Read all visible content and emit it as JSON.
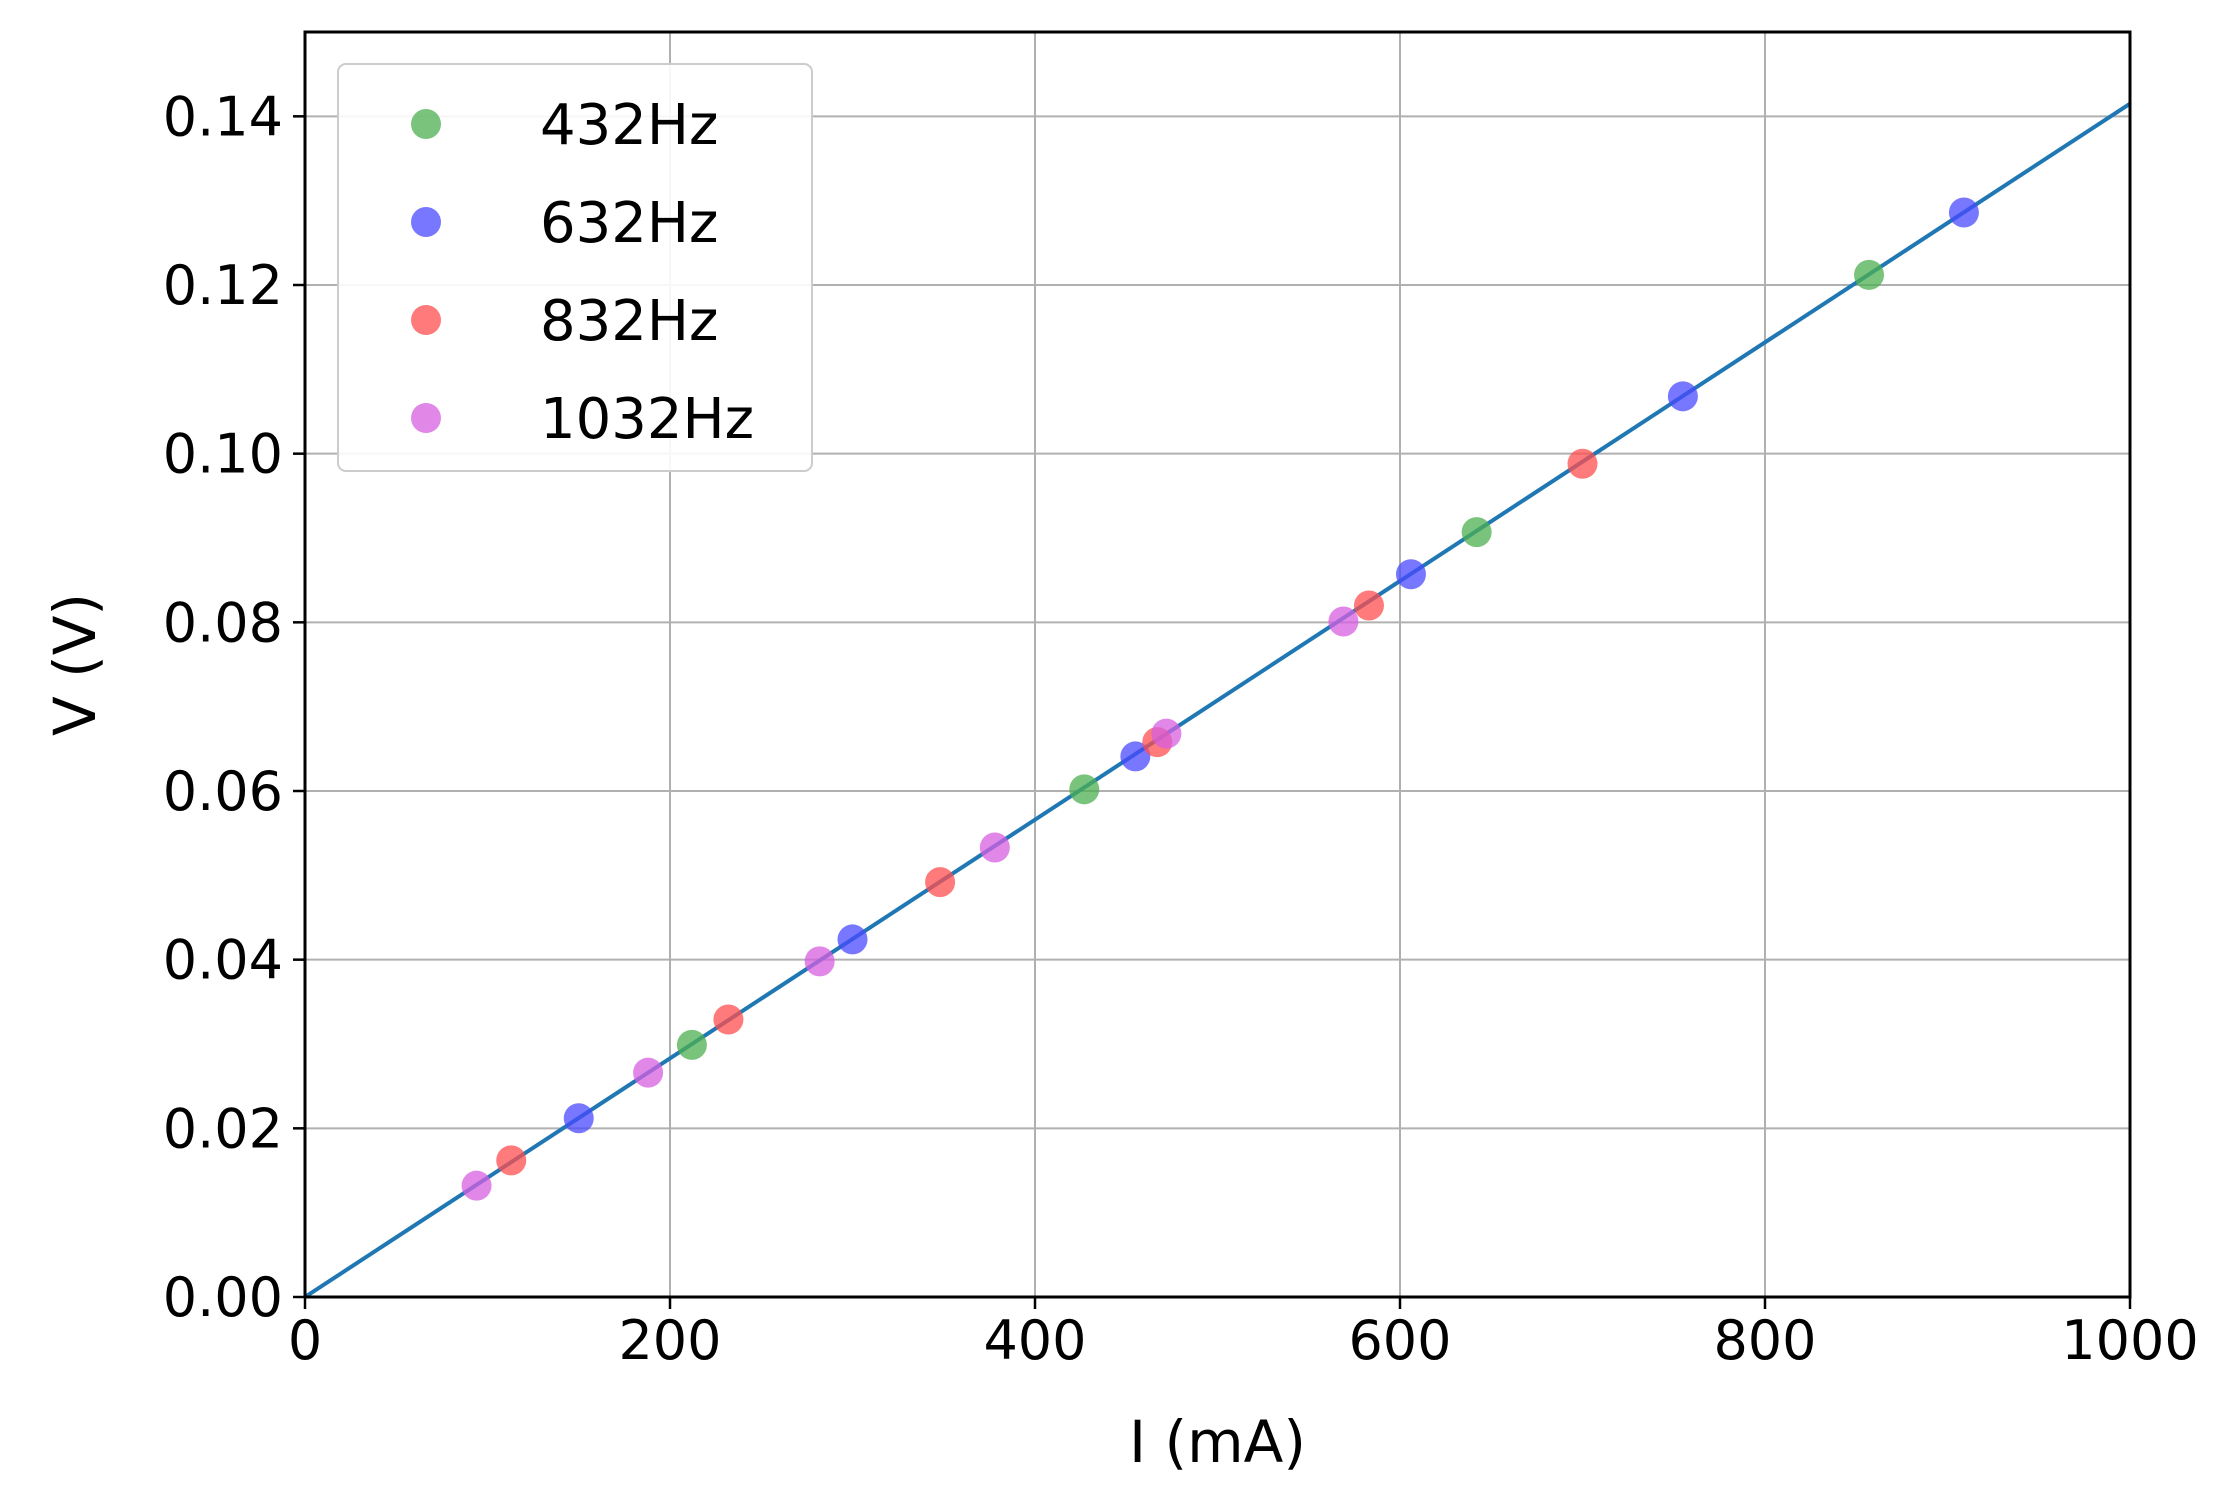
{
  "chart_data": {
    "type": "scatter",
    "title": "",
    "xlabel": "I (mA)",
    "ylabel": "V (V)",
    "xlim": [
      0,
      1000
    ],
    "ylim": [
      0,
      0.15
    ],
    "xticks": [
      0,
      200,
      400,
      600,
      800,
      1000
    ],
    "xtick_labels": [
      "0",
      "200",
      "400",
      "600",
      "800",
      "1000"
    ],
    "yticks": [
      0,
      0.02,
      0.04,
      0.06,
      0.08,
      0.1,
      0.12,
      0.14
    ],
    "ytick_labels": [
      "0.00",
      "0.02",
      "0.04",
      "0.06",
      "0.08",
      "0.10",
      "0.12",
      "0.14"
    ],
    "grid": true,
    "legend_position": "top-left",
    "fit_line": {
      "x": [
        0,
        1000
      ],
      "y": [
        0,
        0.1415
      ],
      "color": "#1f77b4"
    },
    "series": [
      {
        "name": "432Hz",
        "color": "#4caf50",
        "x": [
          212,
          427,
          642,
          857
        ],
        "y": [
          0.0299,
          0.0602,
          0.0907,
          0.1212
        ]
      },
      {
        "name": "632Hz",
        "color": "#4a4aff",
        "x": [
          150,
          300,
          455,
          606,
          755,
          909
        ],
        "y": [
          0.0212,
          0.0424,
          0.0641,
          0.0857,
          0.1068,
          0.1286
        ]
      },
      {
        "name": "832Hz",
        "color": "#ff4d4d",
        "x": [
          113,
          232,
          348,
          467,
          583,
          700
        ],
        "y": [
          0.0162,
          0.0329,
          0.0492,
          0.0658,
          0.082,
          0.0988
        ]
      },
      {
        "name": "1032Hz",
        "color": "#d65fe0",
        "x": [
          94,
          188,
          282,
          378,
          472,
          569
        ],
        "y": [
          0.0132,
          0.0266,
          0.0398,
          0.0533,
          0.0668,
          0.0801
        ]
      }
    ]
  }
}
